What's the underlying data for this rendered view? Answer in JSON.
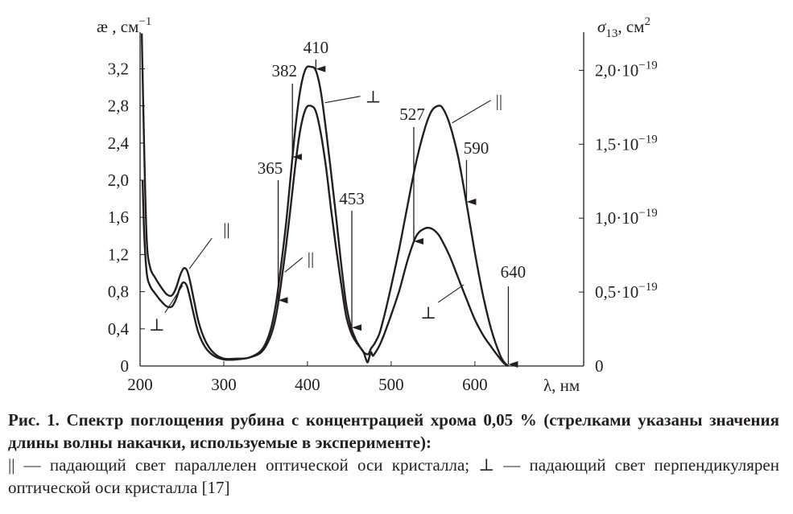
{
  "chart_data": {
    "type": "line",
    "xlabel": "λ, нм",
    "ylabel_left": "æ , см",
    "ylabel_left_sup": "−1",
    "ylabel_right_main": "σ",
    "ylabel_right_sub": "13",
    "ylabel_right_unit": ", см",
    "ylabel_right_sup": "2",
    "xlim": [
      200,
      730
    ],
    "ylim": [
      0,
      3.55
    ],
    "x_ticks": [
      "200",
      "300",
      "400",
      "500",
      "600"
    ],
    "x_tick_values": [
      200,
      300,
      400,
      500,
      600
    ],
    "y_ticks": [
      "0",
      "0,4",
      "0,8",
      "1,2",
      "1,6",
      "2,0",
      "2,4",
      "2,8",
      "3,2"
    ],
    "y_tick_values": [
      0,
      0.4,
      0.8,
      1.2,
      1.6,
      2.0,
      2.4,
      2.8,
      3.2
    ],
    "y2_ticks": [
      {
        "mant": "0",
        "exp": "",
        "value": 0
      },
      {
        "mant": "0,5·10",
        "exp": "−19",
        "value": 0.5
      },
      {
        "mant": "1,0·10",
        "exp": "−19",
        "value": 1.0
      },
      {
        "mant": "1,5·10",
        "exp": "−19",
        "value": 1.5
      },
      {
        "mant": "2,0·10",
        "exp": "−19",
        "value": 2.0
      }
    ],
    "y2lim": [
      0,
      2.2
    ],
    "series": [
      {
        "name": "||",
        "x": [
          202,
          205,
          208,
          212,
          218,
          225,
          232,
          238,
          243,
          248,
          252,
          256,
          260,
          265,
          270,
          278,
          288,
          300,
          315,
          330,
          345,
          355,
          362,
          368,
          374,
          380,
          386,
          392,
          398,
          404,
          410,
          416,
          422,
          428,
          434,
          440,
          446,
          452,
          458,
          463,
          467,
          470,
          473,
          476,
          480,
          486,
          492,
          500,
          510,
          520,
          530,
          540,
          548,
          556,
          562,
          570,
          580,
          590,
          600,
          610,
          620,
          630,
          636,
          640
        ],
        "y": [
          3.58,
          2.3,
          1.35,
          1.06,
          0.95,
          0.85,
          0.77,
          0.76,
          0.84,
          0.98,
          1.05,
          1.03,
          0.9,
          0.68,
          0.47,
          0.27,
          0.14,
          0.08,
          0.08,
          0.09,
          0.17,
          0.36,
          0.65,
          1.05,
          1.5,
          2.05,
          2.6,
          3.0,
          3.2,
          3.22,
          3.18,
          2.95,
          2.55,
          2.1,
          1.62,
          1.12,
          0.68,
          0.42,
          0.28,
          0.2,
          0.15,
          0.13,
          0.13,
          0.19,
          0.24,
          0.35,
          0.55,
          0.86,
          1.28,
          1.75,
          2.2,
          2.55,
          2.74,
          2.8,
          2.77,
          2.6,
          2.25,
          1.75,
          1.22,
          0.75,
          0.38,
          0.12,
          0.03,
          0.0
        ]
      },
      {
        "name": "⊥",
        "x": [
          203,
          205,
          208,
          212,
          218,
          225,
          232,
          238,
          243,
          248,
          252,
          256,
          260,
          265,
          270,
          278,
          288,
          300,
          315,
          330,
          345,
          355,
          362,
          368,
          374,
          380,
          386,
          392,
          398,
          404,
          410,
          416,
          422,
          428,
          434,
          440,
          446,
          452,
          458,
          463,
          467,
          470,
          472,
          474,
          476,
          478,
          480,
          486,
          492,
          500,
          510,
          520,
          530,
          540,
          548,
          556,
          562,
          570,
          580,
          590,
          600,
          610,
          620,
          630,
          636,
          640
        ],
        "y": [
          2.0,
          1.4,
          1.0,
          0.86,
          0.78,
          0.7,
          0.64,
          0.64,
          0.72,
          0.85,
          0.9,
          0.86,
          0.72,
          0.52,
          0.35,
          0.2,
          0.11,
          0.07,
          0.07,
          0.09,
          0.15,
          0.3,
          0.52,
          0.86,
          1.26,
          1.72,
          2.2,
          2.57,
          2.77,
          2.8,
          2.74,
          2.5,
          2.15,
          1.7,
          1.28,
          0.9,
          0.55,
          0.36,
          0.26,
          0.2,
          0.15,
          0.07,
          0.04,
          0.1,
          0.15,
          0.11,
          0.13,
          0.22,
          0.35,
          0.55,
          0.82,
          1.15,
          1.4,
          1.48,
          1.48,
          1.42,
          1.33,
          1.18,
          0.95,
          0.72,
          0.5,
          0.33,
          0.2,
          0.08,
          0.02,
          0.0
        ]
      }
    ],
    "arrows": [
      {
        "label": "410",
        "x": 410
      },
      {
        "label": "382",
        "x": 382
      },
      {
        "label": "365",
        "x": 365
      },
      {
        "label": "453",
        "x": 453
      },
      {
        "label": "527",
        "x": 527
      },
      {
        "label": "590",
        "x": 590
      },
      {
        "label": "640",
        "x": 640
      }
    ],
    "curve_labels": [
      {
        "text": "||",
        "series": "||",
        "x": 256
      },
      {
        "text": "⊥",
        "series": "⊥",
        "x": 248
      },
      {
        "text": "⊥",
        "series": "||",
        "x": 418
      },
      {
        "text": "||",
        "series": "⊥",
        "x": 370
      },
      {
        "text": "||",
        "series": "||",
        "x": 570
      },
      {
        "text": "⊥",
        "series": "⊥",
        "x": 584
      }
    ]
  },
  "caption": {
    "bold": "Рис. 1. Спектр поглощения рубина с концентрацией хрома 0,05 % (стрелками указаны значения длины волны накачки, используемые в эксперименте):",
    "regular": "|| — падающий свет параллелен оптической оси кристалла; ⊥ — падающий свет перпендикулярен оптической оси кристалла [17]"
  }
}
